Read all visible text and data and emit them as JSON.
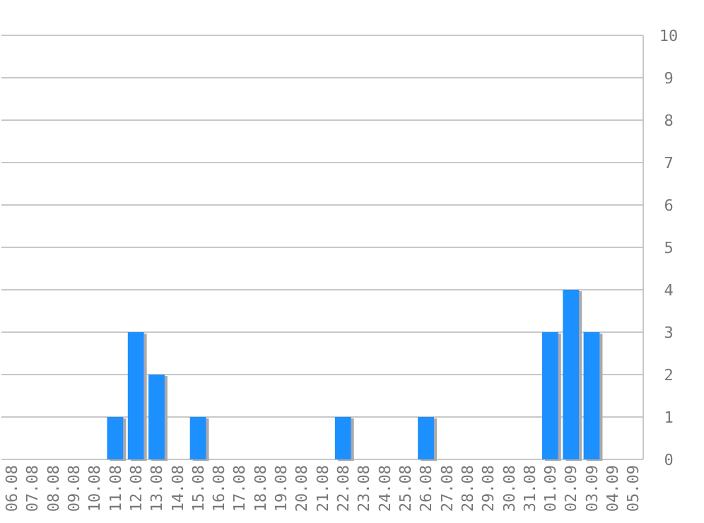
{
  "chart_data": {
    "type": "bar",
    "categories": [
      "06.08",
      "07.08",
      "08.08",
      "09.08",
      "10.08",
      "11.08",
      "12.08",
      "13.08",
      "14.08",
      "15.08",
      "16.08",
      "17.08",
      "18.08",
      "19.08",
      "20.08",
      "21.08",
      "22.08",
      "23.08",
      "24.08",
      "25.08",
      "26.08",
      "27.08",
      "28.08",
      "29.08",
      "30.08",
      "31.08",
      "01.09",
      "02.09",
      "03.09",
      "04.09",
      "05.09"
    ],
    "values": [
      0,
      0,
      0,
      0,
      0,
      1,
      3,
      2,
      0,
      1,
      0,
      0,
      0,
      0,
      0,
      0,
      1,
      0,
      0,
      0,
      1,
      0,
      0,
      0,
      0,
      0,
      3,
      4,
      3,
      0,
      0
    ],
    "color": "#1e90ff",
    "ylim": [
      0,
      10
    ],
    "yticks": [
      0,
      1,
      2,
      3,
      4,
      5,
      6,
      7,
      8,
      9,
      10
    ],
    "grid": "y"
  }
}
